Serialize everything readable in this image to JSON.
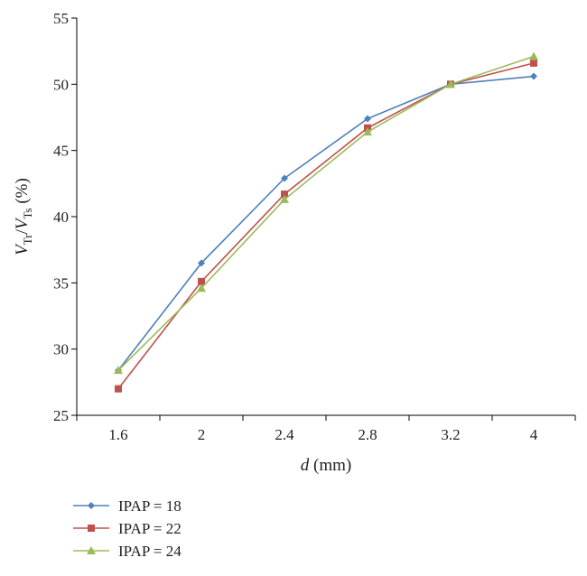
{
  "chart_data": {
    "type": "line",
    "categories": [
      "1.6",
      "2",
      "2.4",
      "2.8",
      "3.2",
      "4"
    ],
    "series": [
      {
        "name": "IPAP = 18",
        "values": [
          28.4,
          36.5,
          42.9,
          47.4,
          50.0,
          50.6
        ],
        "color": "#4f81bd",
        "marker": "diamond"
      },
      {
        "name": "IPAP = 22",
        "values": [
          27.0,
          35.1,
          41.7,
          46.7,
          50.0,
          51.6
        ],
        "color": "#c0504d",
        "marker": "square"
      },
      {
        "name": "IPAP = 24",
        "values": [
          28.4,
          34.6,
          41.3,
          46.4,
          50.0,
          52.1
        ],
        "color": "#9bbb59",
        "marker": "triangle"
      }
    ],
    "ylim": [
      25,
      55
    ],
    "yticks": [
      "25",
      "30",
      "35",
      "40",
      "45",
      "50",
      "55"
    ],
    "xlabel": {
      "var": "d",
      "unit": " (mm)"
    },
    "ylabel": {
      "v1": "V",
      "s1": "Tr",
      "slash": "/",
      "v2": "V",
      "s2": "Ts",
      "unit": " (%)"
    },
    "grid": false,
    "legend_position": "bottom-left"
  }
}
